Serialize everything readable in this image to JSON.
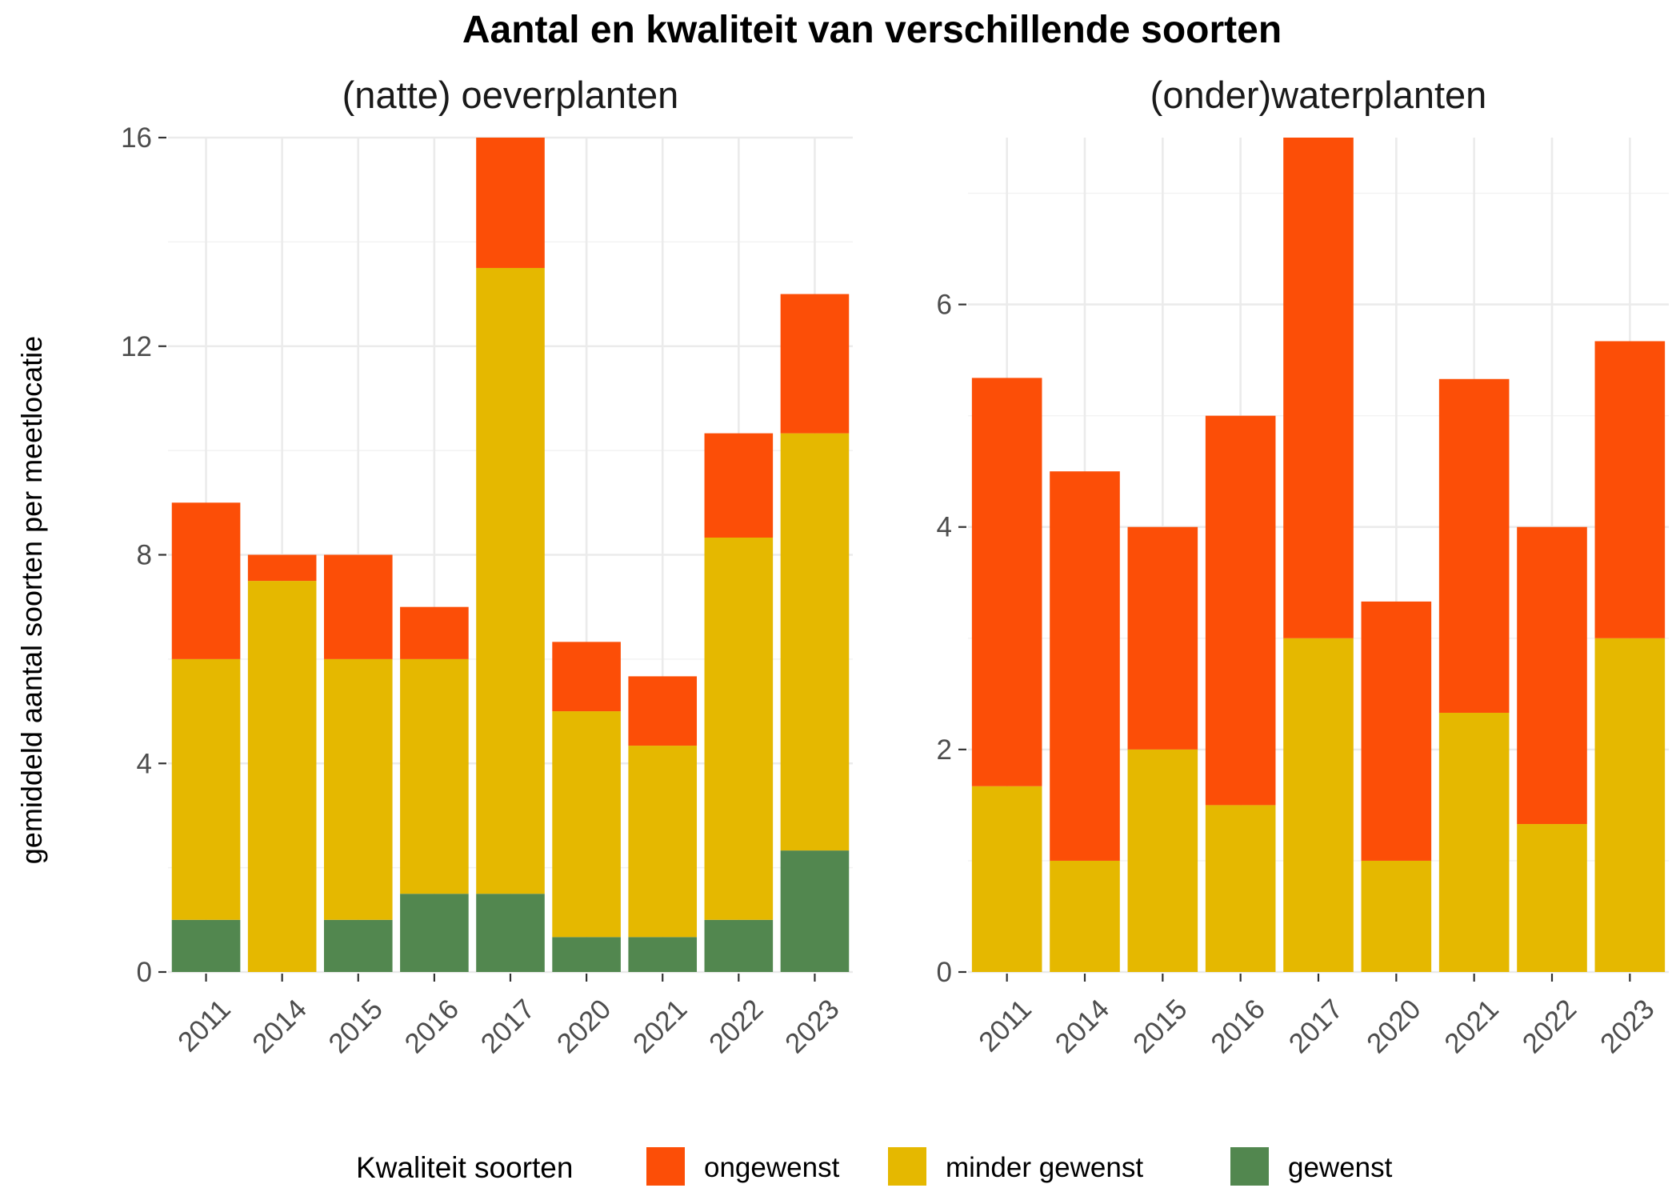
{
  "chart_data": {
    "type": "bar",
    "stacked": true,
    "title": "Aantal en kwaliteit van verschillende soorten",
    "ylabel": "gemiddeld aantal soorten per meetlocatie",
    "legend": {
      "title": "Kwaliteit soorten",
      "placement": "bottom",
      "entries": [
        {
          "name": "ongewenst",
          "color": "#fc4e07"
        },
        {
          "name": "minder gewenst",
          "color": "#e5b800"
        },
        {
          "name": "gewenst",
          "color": "#52874f"
        }
      ]
    },
    "grid": true,
    "panels": [
      {
        "title": "(natte) oeverplanten",
        "categories": [
          "2011",
          "2014",
          "2015",
          "2016",
          "2017",
          "2020",
          "2021",
          "2022",
          "2023"
        ],
        "ylim": [
          0,
          16
        ],
        "yticks": [
          "0",
          "4",
          "8",
          "12",
          "16"
        ],
        "yticks_values": [
          0,
          4,
          8,
          12,
          16
        ],
        "series": [
          {
            "name": "gewenst",
            "values": [
              1,
              0,
              1,
              1.5,
              1.5,
              0.67,
              0.67,
              1,
              2.33
            ]
          },
          {
            "name": "minder gewenst",
            "values": [
              5,
              7.5,
              5,
              4.5,
              12,
              4.33,
              3.67,
              7.33,
              8
            ]
          },
          {
            "name": "ongewenst",
            "values": [
              3,
              0.5,
              2,
              1,
              2.5,
              1.33,
              1.33,
              2,
              2.67
            ]
          }
        ]
      },
      {
        "title": "(onder)waterplanten",
        "categories": [
          "2011",
          "2014",
          "2015",
          "2016",
          "2017",
          "2020",
          "2021",
          "2022",
          "2023"
        ],
        "ylim": [
          0,
          7.5
        ],
        "yticks": [
          "0",
          "2",
          "4",
          "6"
        ],
        "yticks_values": [
          0,
          2,
          4,
          6
        ],
        "series": [
          {
            "name": "gewenst",
            "values": [
              0,
              0,
              0,
              0,
              0,
              0,
              0,
              0,
              0
            ]
          },
          {
            "name": "minder gewenst",
            "values": [
              1.67,
              1,
              2,
              1.5,
              3,
              1,
              2.33,
              1.33,
              3
            ]
          },
          {
            "name": "ongewenst",
            "values": [
              3.67,
              3.5,
              2,
              3.5,
              4.5,
              2.33,
              3,
              2.67,
              2.67
            ]
          }
        ]
      }
    ]
  }
}
